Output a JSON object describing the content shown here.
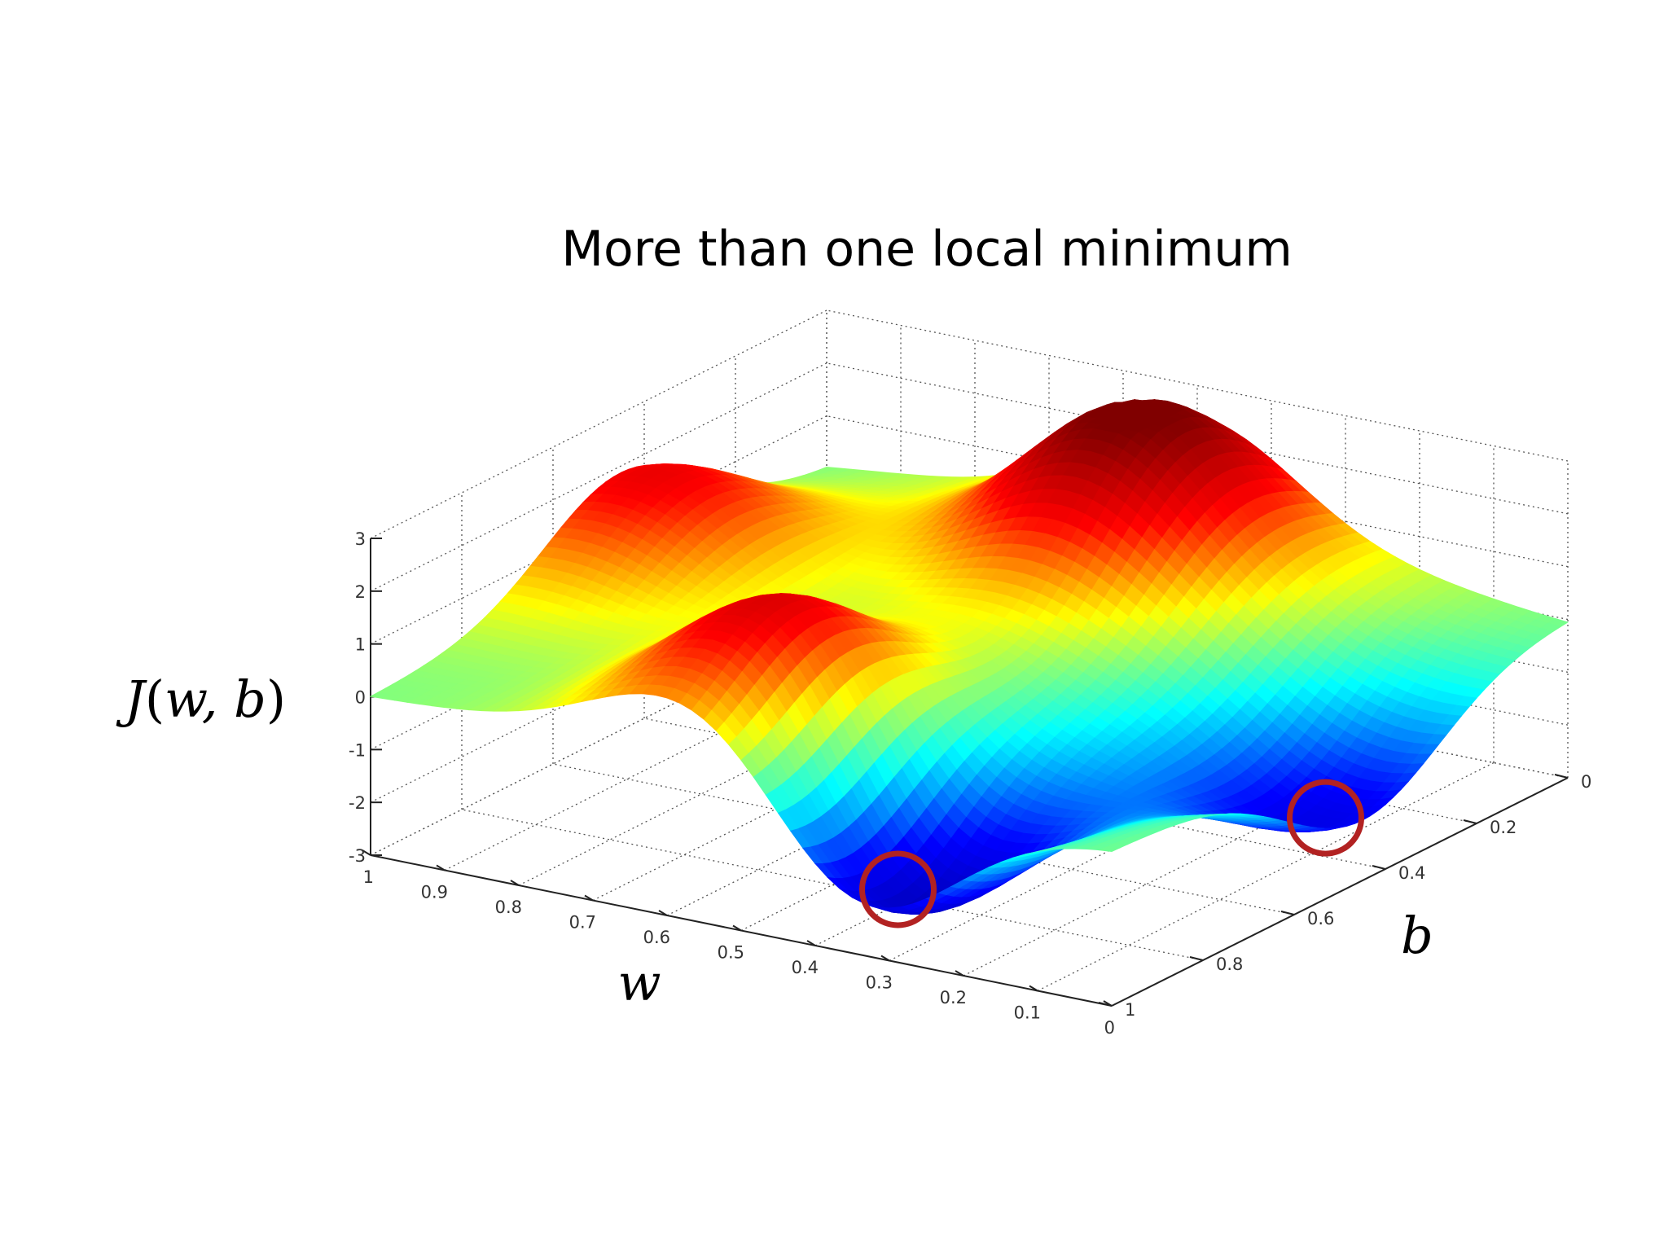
{
  "chart_data": {
    "type": "surface",
    "title": "More than one local minimum",
    "xlabel": "w",
    "ylabel": "b",
    "zlabel": "J(w,b)",
    "xlim": [
      0,
      1
    ],
    "ylim": [
      0,
      1
    ],
    "zlim": [
      -3,
      3
    ],
    "grid": true,
    "x_ticks": [
      "0",
      "0.1",
      "0.2",
      "0.3",
      "0.4",
      "0.5",
      "0.6",
      "0.7",
      "0.8",
      "0.9",
      "1"
    ],
    "y_ticks": [
      "0",
      "0.2",
      "0.4",
      "0.6",
      "0.8",
      "1"
    ],
    "z_ticks": [
      "-3",
      "-2",
      "-1",
      "0",
      "1",
      "2",
      "3"
    ],
    "colormap": [
      "#00008f",
      "#0000ff",
      "#00ffff",
      "#ffff00",
      "#ff0000",
      "#800000"
    ],
    "peaks": [
      {
        "w": 0.95,
        "b": 0.45,
        "J": 2.0
      },
      {
        "w": 0.5,
        "b": 0.15,
        "J": 2.9
      },
      {
        "w": 0.55,
        "b": 0.8,
        "J": 3.0
      }
    ],
    "minima": [
      {
        "w": 0.35,
        "b": 0.9,
        "J": -3.0,
        "highlighted": true
      },
      {
        "w": 0.05,
        "b": 0.45,
        "J": -2.0,
        "highlighted": true
      }
    ],
    "highlight_color": "#b22222"
  }
}
